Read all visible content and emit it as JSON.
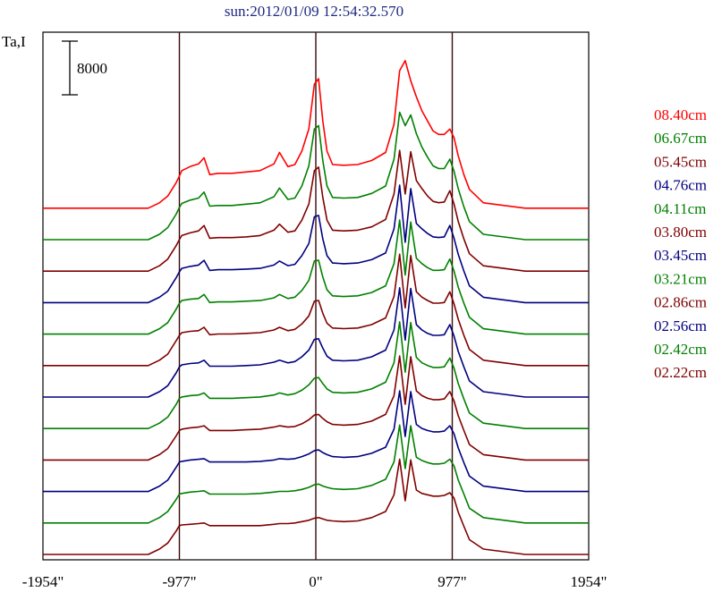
{
  "chart_data": {
    "type": "line",
    "title": "sun:2012/01/09 12:54:32.570",
    "ylabel": "Ta,I",
    "xlabel": "",
    "xlim": [
      -1954,
      1954
    ],
    "x_ticks": [
      {
        "value": -1954,
        "label": "-1954\""
      },
      {
        "value": -977,
        "label": "-977\""
      },
      {
        "value": 0,
        "label": "0\""
      },
      {
        "value": 977,
        "label": "977\""
      },
      {
        "value": 1954,
        "label": "1954\""
      }
    ],
    "vertical_lines": [
      -977,
      0,
      977
    ],
    "scale_bar": {
      "value": 8000,
      "label": "8000"
    },
    "legend_placement": "right",
    "x": [
      -1954,
      -1200,
      -1120,
      -1060,
      -1000,
      -977,
      -960,
      -900,
      -840,
      -800,
      -760,
      -700,
      -600,
      -500,
      -400,
      -300,
      -260,
      -200,
      -150,
      -100,
      -50,
      -10,
      20,
      50,
      80,
      120,
      200,
      300,
      400,
      500,
      560,
      600,
      640,
      680,
      720,
      760,
      800,
      840,
      880,
      920,
      960,
      990,
      1020,
      1060,
      1100,
      1200,
      1500,
      1954
    ],
    "series": [
      {
        "name": "08.40cm",
        "color": "#ff0000",
        "offset": 0,
        "values": [
          0,
          0,
          800,
          1800,
          3800,
          4800,
          5600,
          6200,
          6600,
          7500,
          5000,
          5200,
          5200,
          5400,
          5600,
          6600,
          8300,
          6200,
          6500,
          8500,
          11800,
          18500,
          19300,
          13000,
          8500,
          6500,
          6400,
          6500,
          7100,
          8300,
          12500,
          20500,
          22000,
          19000,
          16600,
          14500,
          13000,
          11500,
          11000,
          11000,
          11800,
          10500,
          7800,
          5000,
          2800,
          800,
          0,
          0
        ]
      },
      {
        "name": "06.67cm",
        "color": "#008000",
        "offset": 0,
        "values": [
          0,
          0,
          800,
          1800,
          3800,
          4800,
          5400,
          5900,
          6200,
          7100,
          5000,
          5100,
          5100,
          5300,
          5500,
          6400,
          7700,
          6000,
          6200,
          8000,
          11000,
          16500,
          17000,
          11800,
          8000,
          6300,
          6200,
          6300,
          6900,
          8000,
          12000,
          19000,
          17000,
          18600,
          15800,
          13800,
          12300,
          11000,
          10600,
          10600,
          12000,
          10200,
          7600,
          4900,
          2700,
          800,
          0,
          0
        ]
      },
      {
        "name": "05.45cm",
        "color": "#800000",
        "offset": 0,
        "values": [
          0,
          0,
          800,
          1800,
          3800,
          4700,
          5300,
          5700,
          6000,
          6800,
          4900,
          5000,
          5000,
          5100,
          5300,
          6100,
          7000,
          5800,
          6000,
          7600,
          10000,
          15000,
          15500,
          11000,
          7600,
          6100,
          6000,
          6100,
          6600,
          7700,
          11500,
          18000,
          11500,
          17800,
          13500,
          12300,
          11200,
          10400,
          10200,
          10300,
          12000,
          10000,
          7400,
          4800,
          2600,
          800,
          0,
          0
        ]
      },
      {
        "name": "04.76cm",
        "color": "#000080",
        "offset": 0,
        "values": [
          0,
          0,
          800,
          1700,
          3700,
          4600,
          5100,
          5400,
          5600,
          6300,
          4800,
          4900,
          4900,
          5000,
          5100,
          5600,
          6200,
          5500,
          5700,
          7000,
          8800,
          12800,
          13000,
          9500,
          7000,
          5900,
          5800,
          5900,
          6400,
          7400,
          11000,
          17500,
          9000,
          17000,
          11800,
          11000,
          10300,
          9800,
          9700,
          9800,
          11500,
          9600,
          7200,
          4700,
          2500,
          800,
          0,
          0
        ]
      },
      {
        "name": "04.11cm",
        "color": "#008000",
        "offset": 0,
        "values": [
          0,
          0,
          800,
          1700,
          3700,
          4600,
          5000,
          5200,
          5300,
          5900,
          4700,
          4800,
          4800,
          4900,
          5000,
          5400,
          5900,
          5300,
          5500,
          6500,
          8000,
          10900,
          11000,
          8500,
          6600,
          5700,
          5600,
          5700,
          6200,
          7200,
          10500,
          17000,
          8800,
          16700,
          11300,
          10500,
          9900,
          9500,
          9500,
          9600,
          11200,
          9400,
          7000,
          4600,
          2500,
          800,
          0,
          0
        ]
      },
      {
        "name": "03.80cm",
        "color": "#800000",
        "offset": 0,
        "values": [
          0,
          0,
          800,
          1700,
          3700,
          4500,
          4900,
          5100,
          5200,
          5700,
          4600,
          4700,
          4700,
          4800,
          4900,
          5300,
          5700,
          5200,
          5400,
          6200,
          7400,
          9600,
          9700,
          7800,
          6300,
          5600,
          5500,
          5600,
          6100,
          7100,
          10300,
          16600,
          8600,
          16400,
          11000,
          10200,
          9700,
          9300,
          9300,
          9400,
          11000,
          9200,
          6900,
          4500,
          2400,
          800,
          0,
          0
        ]
      },
      {
        "name": "03.45cm",
        "color": "#000080",
        "offset": 0,
        "values": [
          0,
          0,
          800,
          1700,
          3600,
          4500,
          4800,
          5000,
          5100,
          5500,
          4600,
          4600,
          4600,
          4700,
          4800,
          5200,
          5500,
          5100,
          5300,
          6000,
          7000,
          8600,
          8700,
          7300,
          6100,
          5500,
          5400,
          5500,
          6000,
          7000,
          10000,
          16300,
          8500,
          16200,
          10800,
          10000,
          9500,
          9200,
          9200,
          9300,
          10800,
          9100,
          6800,
          4500,
          2400,
          800,
          0,
          0
        ]
      },
      {
        "name": "03.21cm",
        "color": "#008000",
        "offset": 0,
        "values": [
          0,
          0,
          800,
          1700,
          3600,
          4500,
          4700,
          4900,
          5000,
          5300,
          4500,
          4500,
          4500,
          4600,
          4700,
          5000,
          5300,
          5000,
          5200,
          5700,
          6500,
          7500,
          7600,
          6700,
          5900,
          5400,
          5300,
          5400,
          5900,
          6900,
          9800,
          15900,
          8400,
          15800,
          10600,
          9800,
          9400,
          9100,
          9100,
          9200,
          10500,
          9000,
          6700,
          4400,
          2300,
          800,
          0,
          0
        ]
      },
      {
        "name": "02.86cm",
        "color": "#800000",
        "offset": 0,
        "values": [
          0,
          0,
          800,
          1700,
          3600,
          4400,
          4600,
          4800,
          4900,
          5100,
          4400,
          4400,
          4400,
          4500,
          4600,
          4900,
          5100,
          4900,
          5000,
          5400,
          6000,
          6700,
          6800,
          6200,
          5700,
          5300,
          5200,
          5300,
          5800,
          6800,
          9600,
          15500,
          8300,
          15400,
          10300,
          9600,
          9200,
          9000,
          9000,
          9100,
          10200,
          8800,
          6600,
          4400,
          2300,
          800,
          0,
          0
        ]
      },
      {
        "name": "02.56cm",
        "color": "#000080",
        "offset": 0,
        "values": [
          0,
          0,
          800,
          1700,
          3600,
          4400,
          4500,
          4700,
          4800,
          4900,
          4400,
          4400,
          4400,
          4400,
          4500,
          4700,
          4900,
          4800,
          4900,
          5200,
          5600,
          6100,
          6200,
          5800,
          5500,
          5200,
          5100,
          5200,
          5700,
          6600,
          9300,
          15000,
          8200,
          14900,
          10000,
          9400,
          9100,
          8900,
          8900,
          9000,
          9800,
          8600,
          6500,
          4300,
          2300,
          800,
          0,
          0
        ]
      },
      {
        "name": "02.42cm",
        "color": "#008000",
        "offset": 0,
        "values": [
          0,
          0,
          800,
          1700,
          3500,
          4300,
          4400,
          4600,
          4700,
          4800,
          4300,
          4300,
          4300,
          4300,
          4400,
          4600,
          4700,
          4700,
          4800,
          5000,
          5300,
          5700,
          5800,
          5500,
          5300,
          5100,
          5000,
          5100,
          5600,
          6500,
          9100,
          14600,
          8100,
          14500,
          9800,
          9300,
          9000,
          8800,
          8800,
          8900,
          9500,
          8500,
          6400,
          4300,
          2200,
          800,
          0,
          0
        ]
      },
      {
        "name": "02.22cm",
        "color": "#800000",
        "offset": 0,
        "values": [
          0,
          0,
          800,
          1700,
          3500,
          4300,
          4400,
          4500,
          4600,
          4700,
          4300,
          4300,
          4300,
          4300,
          4300,
          4500,
          4600,
          4600,
          4700,
          4900,
          5100,
          5400,
          5500,
          5300,
          5100,
          5000,
          4900,
          5000,
          5500,
          6400,
          8900,
          14200,
          8000,
          14100,
          9600,
          9100,
          8900,
          8700,
          8700,
          8800,
          9200,
          8400,
          6300,
          4200,
          2200,
          800,
          0,
          0
        ]
      }
    ]
  }
}
